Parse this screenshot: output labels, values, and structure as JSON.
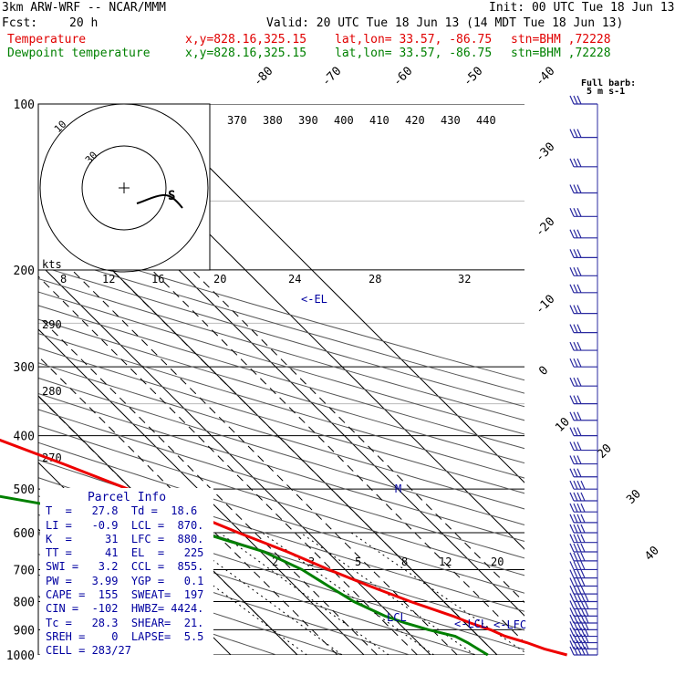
{
  "header": {
    "model": "3km ARW-WRF -- NCAR/MMM",
    "init": "Init: 00 UTC Tue 18 Jun 13",
    "fcst_label": "Fcst:",
    "fcst_value": "20 h",
    "valid": "Valid: 20 UTC Tue 18 Jun 13 (14 MDT Tue 18 Jun 13)",
    "temp_label": "Temperature",
    "dewp_label": "Dewpoint temperature",
    "loc_xy": "x,y=828.16,325.15",
    "loc_latlon": "lat,lon= 33.57, -86.75",
    "loc_stn": "stn=BHM ,72228"
  },
  "colors": {
    "temperature": "#ee0000",
    "dewpoint": "#008000",
    "barbs": "#2a2aa0",
    "grid": "#000000",
    "theta": "#555555",
    "parcel_text": "#0000a0"
  },
  "chart_data": {
    "type": "line",
    "subtype": "skew-T log-P sounding",
    "y_axis": "pressure (hPa)",
    "x_axis": "temperature (°C, skewed isotherms)",
    "pressure_levels": [
      100,
      200,
      300,
      400,
      500,
      600,
      700,
      800,
      900,
      1000
    ],
    "isotherm_labels": [
      "-80",
      "-70",
      "-60",
      "-50",
      "-40",
      "-30",
      "-20",
      "-10",
      "0",
      "10",
      "20",
      "30",
      "40"
    ],
    "theta_labels": [
      "370",
      "380",
      "390",
      "400",
      "410",
      "420",
      "430",
      "440"
    ],
    "theta_side_labels": [
      "290",
      "280",
      "270"
    ],
    "mixing_ratio_labels": [
      "2",
      "3",
      "5",
      "8",
      "12",
      "20"
    ],
    "wind_speed_labels": [
      "8",
      "12",
      "16",
      "20",
      "24",
      "28",
      "32"
    ],
    "hodograph_labels": [
      "kts",
      "10",
      "30"
    ],
    "hodograph_storm_marker": "S",
    "annotations": [
      "<-EL",
      "<-LCL",
      "<-LFC",
      "M",
      "LCL"
    ],
    "barb_legend": [
      "Full barb:",
      "5 m s-1"
    ],
    "temperature": {
      "name": "Temperature",
      "p": [
        1000,
        975,
        950,
        925,
        900,
        875,
        850,
        800,
        750,
        700,
        650,
        600,
        550,
        500,
        450,
        400,
        350,
        300,
        250,
        200,
        175,
        150,
        125,
        115,
        100
      ],
      "t": [
        30.5,
        28.0,
        26.3,
        24.0,
        22.8,
        20.8,
        19.2,
        15.0,
        11.2,
        7.5,
        4.0,
        -0.5,
        -5.0,
        -10.5,
        -16.5,
        -23.5,
        -32.0,
        -42.0,
        -52.0,
        -61.0,
        -65.5,
        -66.5,
        -61.5,
        -58.0,
        -56.5
      ]
    },
    "dewpoint": {
      "name": "Dewpoint temperature",
      "p": [
        1000,
        975,
        950,
        925,
        900,
        875,
        850,
        800,
        750,
        700,
        650,
        600,
        550,
        500,
        470,
        450,
        425,
        400,
        350,
        300,
        250,
        220,
        200,
        175,
        150,
        125,
        100
      ],
      "td": [
        18.6,
        18.0,
        17.4,
        16.5,
        13.5,
        11.0,
        9.0,
        6.5,
        5.0,
        3.5,
        0.5,
        -6.0,
        -20.0,
        -36.0,
        -50.0,
        -56.0,
        -61.0,
        -62.0,
        -64.0,
        -70.0,
        -75.0,
        -79.0,
        -78.5,
        -81.0,
        -87.0,
        -87.0,
        -80.0
      ]
    },
    "wind_barbs_p": [
      100,
      115,
      130,
      145,
      160,
      175,
      190,
      205,
      220,
      240,
      260,
      280,
      300,
      325,
      350,
      375,
      400,
      425,
      450,
      475,
      500,
      525,
      550,
      575,
      600,
      625,
      650,
      675,
      700,
      725,
      750,
      775,
      800,
      825,
      850,
      875,
      900,
      925,
      950,
      975,
      1000
    ]
  },
  "parcel_info": {
    "title": "Parcel Info",
    "rows": [
      "T  =   27.8  Td =  18.6",
      "LI =   -0.9  LCL =  870.",
      "K  =     31  LFC =  880.",
      "TT =     41  EL  =   225",
      "SWI =   3.2  CCL =  855.",
      "PW =   3.99  YGP =   0.1",
      "CAPE =  155  SWEAT=  197",
      "CIN =  -102  HWBZ= 4424.",
      "Tc =   28.3  SHEAR=  21.",
      "SREH =    0  LAPSE=  5.5",
      "CELL = 283/27"
    ]
  }
}
